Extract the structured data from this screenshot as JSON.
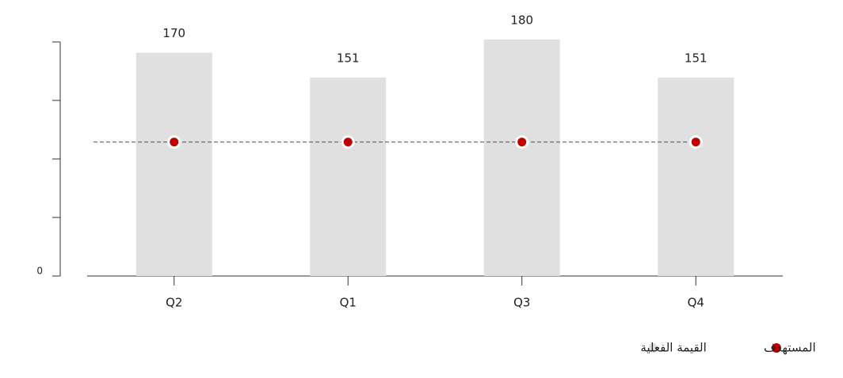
{
  "chart_data": {
    "type": "bar",
    "categories": [
      "Q2",
      "Q1",
      "Q3",
      "Q4"
    ],
    "ylim": [
      0,
      180
    ],
    "yticks": [
      0
    ],
    "series": [
      {
        "name": "القيمة الفعلية",
        "color": "#e0e0e0",
        "type": "bar",
        "values": [
          170,
          151,
          180,
          151
        ]
      },
      {
        "name": "المستهدف",
        "color": "#c00000",
        "type": "line",
        "line_color": "#4a4a8a",
        "values": [
          102,
          102,
          102,
          102
        ]
      }
    ]
  }
}
